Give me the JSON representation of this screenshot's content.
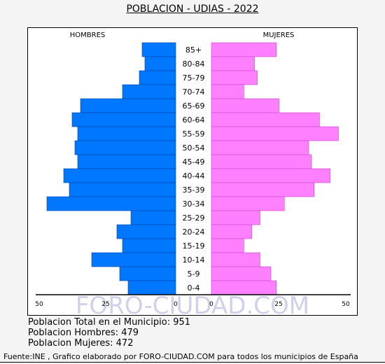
{
  "title": "POBLACION - UDIAS - 2022",
  "left_label": "HOMBRES",
  "right_label": "MUJERES",
  "watermark": "FORO-CIUDAD.COM",
  "stats": {
    "total": "Poblacion Total en el Municipio: 951",
    "hombres": "Poblacion Hombres: 479",
    "mujeres": "Poblacion Mujeres: 472"
  },
  "source": "Fuente:INE , Grafico elaborado por FORO-CIUDAD.COM para todos los municipios de España",
  "colors": {
    "men": "#0077ff",
    "women": "#ff80ff",
    "watermark": "#d0d0ea"
  },
  "chart_data": {
    "type": "bar",
    "orientation": "horizontal",
    "categories": [
      "85+",
      "80-84",
      "75-79",
      "70-74",
      "65-69",
      "60-64",
      "55-59",
      "50-54",
      "45-49",
      "40-44",
      "35-39",
      "30-34",
      "25-29",
      "20-24",
      "15-19",
      "10-14",
      "5-9",
      "0-4"
    ],
    "series": [
      {
        "name": "HOMBRES",
        "values": [
          12,
          11,
          13,
          19,
          34,
          37,
          35,
          36,
          35,
          40,
          38,
          46,
          16,
          21,
          19,
          30,
          20,
          17
        ]
      },
      {
        "name": "MUJERES",
        "values": [
          24,
          16,
          17,
          12,
          25,
          40,
          47,
          36,
          37,
          44,
          38,
          27,
          18,
          15,
          12,
          18,
          22,
          24
        ]
      }
    ],
    "xlim": [
      0,
      50
    ],
    "x_ticks": [
      "50",
      "25",
      "0",
      "0",
      "25",
      "50"
    ]
  }
}
